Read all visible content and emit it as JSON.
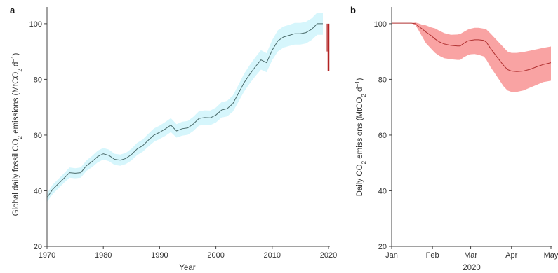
{
  "chart_data": [
    {
      "panel": "a",
      "type": "area",
      "xlabel": "Year",
      "ylabel_parts": [
        "Global daily fossil CO",
        "2",
        " emissions (MtCO",
        "2",
        " d",
        "−1",
        ")"
      ],
      "xlim": [
        1970,
        2020
      ],
      "ylim": [
        20,
        105
      ],
      "xticks": [
        1970,
        1980,
        1990,
        2000,
        2010,
        2020
      ],
      "yticks": [
        20,
        40,
        60,
        80,
        100
      ],
      "colors": {
        "line": "#4a6b6b",
        "band": "#d6f6fc",
        "drop": "#b22222"
      },
      "series": [
        {
          "x": [
            1970,
            1971,
            1972,
            1973,
            1974,
            1975,
            1976,
            1977,
            1978,
            1979,
            1980,
            1981,
            1982,
            1983,
            1984,
            1985,
            1986,
            1987,
            1988,
            1989,
            1990,
            1991,
            1992,
            1993,
            1994,
            1995,
            1996,
            1997,
            1998,
            1999,
            2000,
            2001,
            2002,
            2003,
            2004,
            2005,
            2006,
            2007,
            2008,
            2009,
            2010,
            2011,
            2012,
            2013,
            2014,
            2015,
            2016,
            2017,
            2018,
            2019
          ],
          "y": [
            37.5,
            40.5,
            42.5,
            44.5,
            46.5,
            46.3,
            46.5,
            49.0,
            50.5,
            52.3,
            53.3,
            52.7,
            51.3,
            51.0,
            51.6,
            53.0,
            55.0,
            56.2,
            58.2,
            60.0,
            61.0,
            62.2,
            63.6,
            61.5,
            62.3,
            62.6,
            64.0,
            66.0,
            66.3,
            66.2,
            67.2,
            69.0,
            69.5,
            71.3,
            75.0,
            78.8,
            81.8,
            84.5,
            87.0,
            86.0,
            90.5,
            93.8,
            95.2,
            95.8,
            96.4,
            96.4,
            96.8,
            98.0,
            100.0,
            100.0
          ],
          "lower": [
            36.0,
            38.8,
            40.8,
            42.8,
            44.7,
            44.5,
            44.7,
            47.1,
            48.5,
            50.2,
            51.2,
            50.6,
            49.3,
            49.0,
            49.6,
            50.9,
            52.8,
            54.0,
            55.9,
            57.6,
            58.6,
            59.7,
            61.1,
            59.1,
            59.8,
            60.1,
            61.5,
            63.4,
            63.7,
            63.6,
            64.5,
            66.3,
            66.7,
            68.4,
            72.0,
            75.6,
            78.5,
            81.1,
            83.5,
            82.6,
            86.9,
            90.0,
            91.4,
            92.0,
            92.5,
            92.5,
            92.9,
            94.1,
            96.0,
            96.0
          ],
          "upper": [
            39.0,
            42.2,
            44.2,
            46.2,
            48.4,
            48.1,
            48.4,
            50.9,
            52.5,
            54.4,
            55.4,
            54.8,
            53.3,
            53.0,
            53.6,
            55.1,
            57.2,
            58.4,
            60.5,
            62.4,
            63.4,
            64.7,
            66.1,
            63.9,
            64.8,
            65.1,
            66.6,
            68.6,
            68.9,
            68.8,
            69.9,
            71.8,
            72.3,
            74.2,
            78.0,
            82.0,
            85.1,
            87.9,
            90.5,
            89.4,
            94.1,
            97.6,
            99.0,
            99.6,
            100.3,
            100.3,
            100.7,
            101.9,
            104.0,
            104.0
          ]
        }
      ],
      "drop_2020": {
        "x": 2020,
        "y_from": 100.0,
        "y_to": 83.0
      }
    },
    {
      "panel": "b",
      "type": "area",
      "xlabel": "2020",
      "ylabel_parts": [
        "Daily CO",
        "2",
        " emissions (MtCO",
        "2",
        " d",
        "−1",
        ")"
      ],
      "xlim": [
        0,
        121
      ],
      "ylim": [
        20,
        105
      ],
      "xticks": [
        0,
        31,
        60,
        91,
        121
      ],
      "xticklabels": [
        "Jan",
        "Feb",
        "Mar",
        "Apr",
        "May"
      ],
      "yticks": [
        20,
        40,
        60,
        80,
        100
      ],
      "colors": {
        "line": "#b03030",
        "band": "#f9a3a3"
      },
      "series": [
        {
          "x": [
            0,
            5,
            10,
            15,
            18,
            20,
            23,
            26,
            30,
            33,
            36,
            40,
            45,
            50,
            52,
            55,
            58,
            60,
            63,
            66,
            70,
            72,
            75,
            80,
            85,
            88,
            91,
            95,
            100,
            105,
            110,
            115,
            121
          ],
          "y": [
            100.2,
            100.2,
            100.2,
            100.2,
            100.0,
            99.2,
            98.2,
            97.0,
            95.7,
            94.5,
            93.5,
            92.7,
            92.2,
            92.0,
            92.0,
            93.0,
            93.8,
            94.0,
            94.2,
            94.2,
            94.0,
            93.3,
            91.2,
            88.0,
            85.0,
            83.5,
            83.0,
            82.8,
            83.0,
            83.6,
            84.5,
            85.3,
            86.0
          ],
          "lower": [
            100.2,
            100.2,
            100.2,
            100.2,
            99.5,
            98.0,
            95.5,
            93.0,
            91.0,
            89.5,
            88.5,
            87.6,
            87.2,
            87.0,
            87.0,
            88.0,
            88.7,
            89.0,
            89.1,
            88.8,
            88.2,
            87.0,
            84.5,
            81.0,
            77.5,
            76.0,
            75.5,
            75.5,
            76.0,
            77.0,
            78.0,
            79.0,
            79.5
          ],
          "upper": [
            100.2,
            100.2,
            100.2,
            100.2,
            100.4,
            100.2,
            99.7,
            99.4,
            98.7,
            98.3,
            97.5,
            96.6,
            96.0,
            96.1,
            96.3,
            97.1,
            97.9,
            98.2,
            98.5,
            98.5,
            98.2,
            97.9,
            96.5,
            94.0,
            91.5,
            90.0,
            89.5,
            89.5,
            89.8,
            90.3,
            90.8,
            91.3,
            91.8
          ]
        }
      ]
    }
  ]
}
